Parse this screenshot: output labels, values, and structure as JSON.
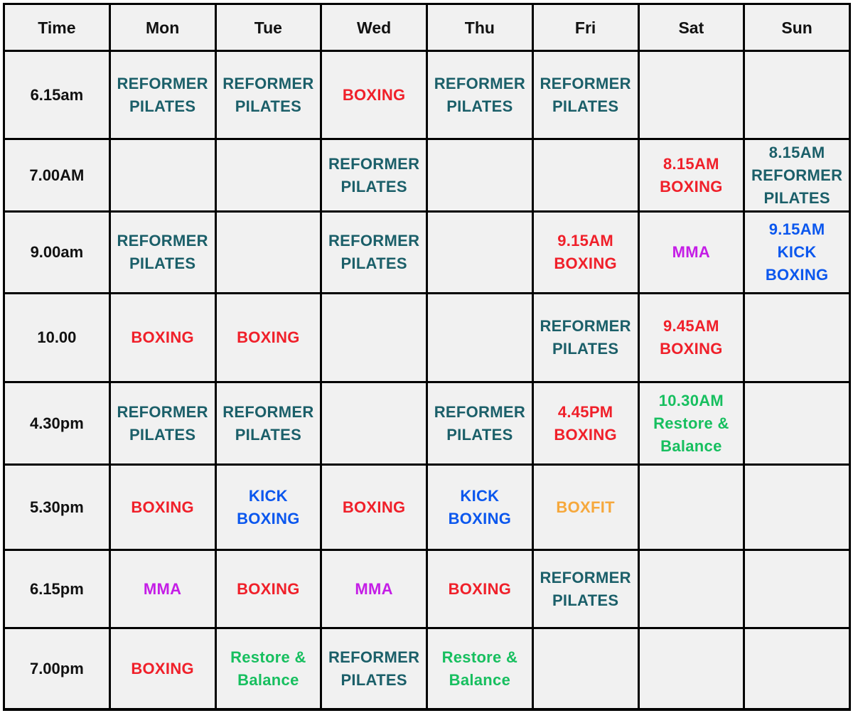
{
  "colors": {
    "pilates": "#1b5f69",
    "boxing": "#f0202a",
    "kickboxing": "#0b57ee",
    "mma": "#c41de6",
    "restore": "#17bf5f",
    "boxfit": "#f6a83c",
    "text": "#111111",
    "cell_background": "#f1f1f1",
    "border": "#000000"
  },
  "headers": [
    "Time",
    "Mon",
    "Tue",
    "Wed",
    "Thu",
    "Fri",
    "Sat",
    "Sun"
  ],
  "rows": [
    {
      "time": "6.15am",
      "cells": [
        {
          "lines": [
            "REFORMER",
            "PILATES"
          ],
          "type": "pilates"
        },
        {
          "lines": [
            "REFORMER",
            "PILATES"
          ],
          "type": "pilates"
        },
        {
          "lines": [
            "BOXING"
          ],
          "type": "boxing"
        },
        {
          "lines": [
            "REFORMER",
            "PILATES"
          ],
          "type": "pilates"
        },
        {
          "lines": [
            "REFORMER",
            "PILATES"
          ],
          "type": "pilates"
        },
        {
          "lines": [],
          "type": ""
        },
        {
          "lines": [],
          "type": ""
        }
      ]
    },
    {
      "time": "7.00AM",
      "cells": [
        {
          "lines": [],
          "type": ""
        },
        {
          "lines": [],
          "type": ""
        },
        {
          "lines": [
            "REFORMER",
            "PILATES"
          ],
          "type": "pilates"
        },
        {
          "lines": [],
          "type": ""
        },
        {
          "lines": [],
          "type": ""
        },
        {
          "lines": [
            "8.15AM",
            "BOXING"
          ],
          "type": "boxing"
        },
        {
          "lines": [
            "8.15AM",
            "REFORMER",
            "PILATES"
          ],
          "type": "pilates"
        }
      ]
    },
    {
      "time": "9.00am",
      "cells": [
        {
          "lines": [
            "REFORMER",
            "PILATES"
          ],
          "type": "pilates"
        },
        {
          "lines": [],
          "type": ""
        },
        {
          "lines": [
            "REFORMER",
            "PILATES"
          ],
          "type": "pilates"
        },
        {
          "lines": [],
          "type": ""
        },
        {
          "lines": [
            "9.15AM",
            "BOXING"
          ],
          "type": "boxing"
        },
        {
          "lines": [
            "MMA"
          ],
          "type": "mma"
        },
        {
          "lines": [
            "9.15AM",
            "KICK",
            "BOXING"
          ],
          "type": "kickboxing"
        }
      ]
    },
    {
      "time": "10.00",
      "cells": [
        {
          "lines": [
            "BOXING"
          ],
          "type": "boxing"
        },
        {
          "lines": [
            "BOXING"
          ],
          "type": "boxing"
        },
        {
          "lines": [],
          "type": ""
        },
        {
          "lines": [],
          "type": ""
        },
        {
          "lines": [
            "REFORMER",
            "PILATES"
          ],
          "type": "pilates"
        },
        {
          "lines": [
            "9.45AM",
            "BOXING"
          ],
          "type": "boxing"
        },
        {
          "lines": [],
          "type": ""
        }
      ]
    },
    {
      "time": "4.30pm",
      "cells": [
        {
          "lines": [
            "REFORMER",
            "PILATES"
          ],
          "type": "pilates"
        },
        {
          "lines": [
            "REFORMER",
            "PILATES"
          ],
          "type": "pilates"
        },
        {
          "lines": [],
          "type": ""
        },
        {
          "lines": [
            "REFORMER",
            "PILATES"
          ],
          "type": "pilates"
        },
        {
          "lines": [
            "4.45PM",
            "BOXING"
          ],
          "type": "boxing"
        },
        {
          "lines": [
            "10.30AM",
            "Restore &",
            "Balance"
          ],
          "type": "restore"
        },
        {
          "lines": [],
          "type": ""
        }
      ]
    },
    {
      "time": "5.30pm",
      "cells": [
        {
          "lines": [
            "BOXING"
          ],
          "type": "boxing"
        },
        {
          "lines": [
            "KICK",
            "BOXING"
          ],
          "type": "kickboxing"
        },
        {
          "lines": [
            "BOXING"
          ],
          "type": "boxing"
        },
        {
          "lines": [
            "KICK",
            "BOXING"
          ],
          "type": "kickboxing"
        },
        {
          "lines": [
            "BOXFIT"
          ],
          "type": "boxfit"
        },
        {
          "lines": [],
          "type": ""
        },
        {
          "lines": [],
          "type": ""
        }
      ]
    },
    {
      "time": "6.15pm",
      "cells": [
        {
          "lines": [
            "MMA"
          ],
          "type": "mma"
        },
        {
          "lines": [
            "BOXING"
          ],
          "type": "boxing"
        },
        {
          "lines": [
            "MMA"
          ],
          "type": "mma"
        },
        {
          "lines": [
            "BOXING"
          ],
          "type": "boxing"
        },
        {
          "lines": [
            "REFORMER",
            "PILATES"
          ],
          "type": "pilates"
        },
        {
          "lines": [],
          "type": ""
        },
        {
          "lines": [],
          "type": ""
        }
      ]
    },
    {
      "time": "7.00pm",
      "cells": [
        {
          "lines": [
            "BOXING"
          ],
          "type": "boxing"
        },
        {
          "lines": [
            "Restore &",
            "Balance"
          ],
          "type": "restore"
        },
        {
          "lines": [
            "REFORMER",
            "PILATES"
          ],
          "type": "pilates"
        },
        {
          "lines": [
            "Restore &",
            "Balance"
          ],
          "type": "restore"
        },
        {
          "lines": [],
          "type": ""
        },
        {
          "lines": [],
          "type": ""
        },
        {
          "lines": [],
          "type": ""
        }
      ]
    }
  ]
}
